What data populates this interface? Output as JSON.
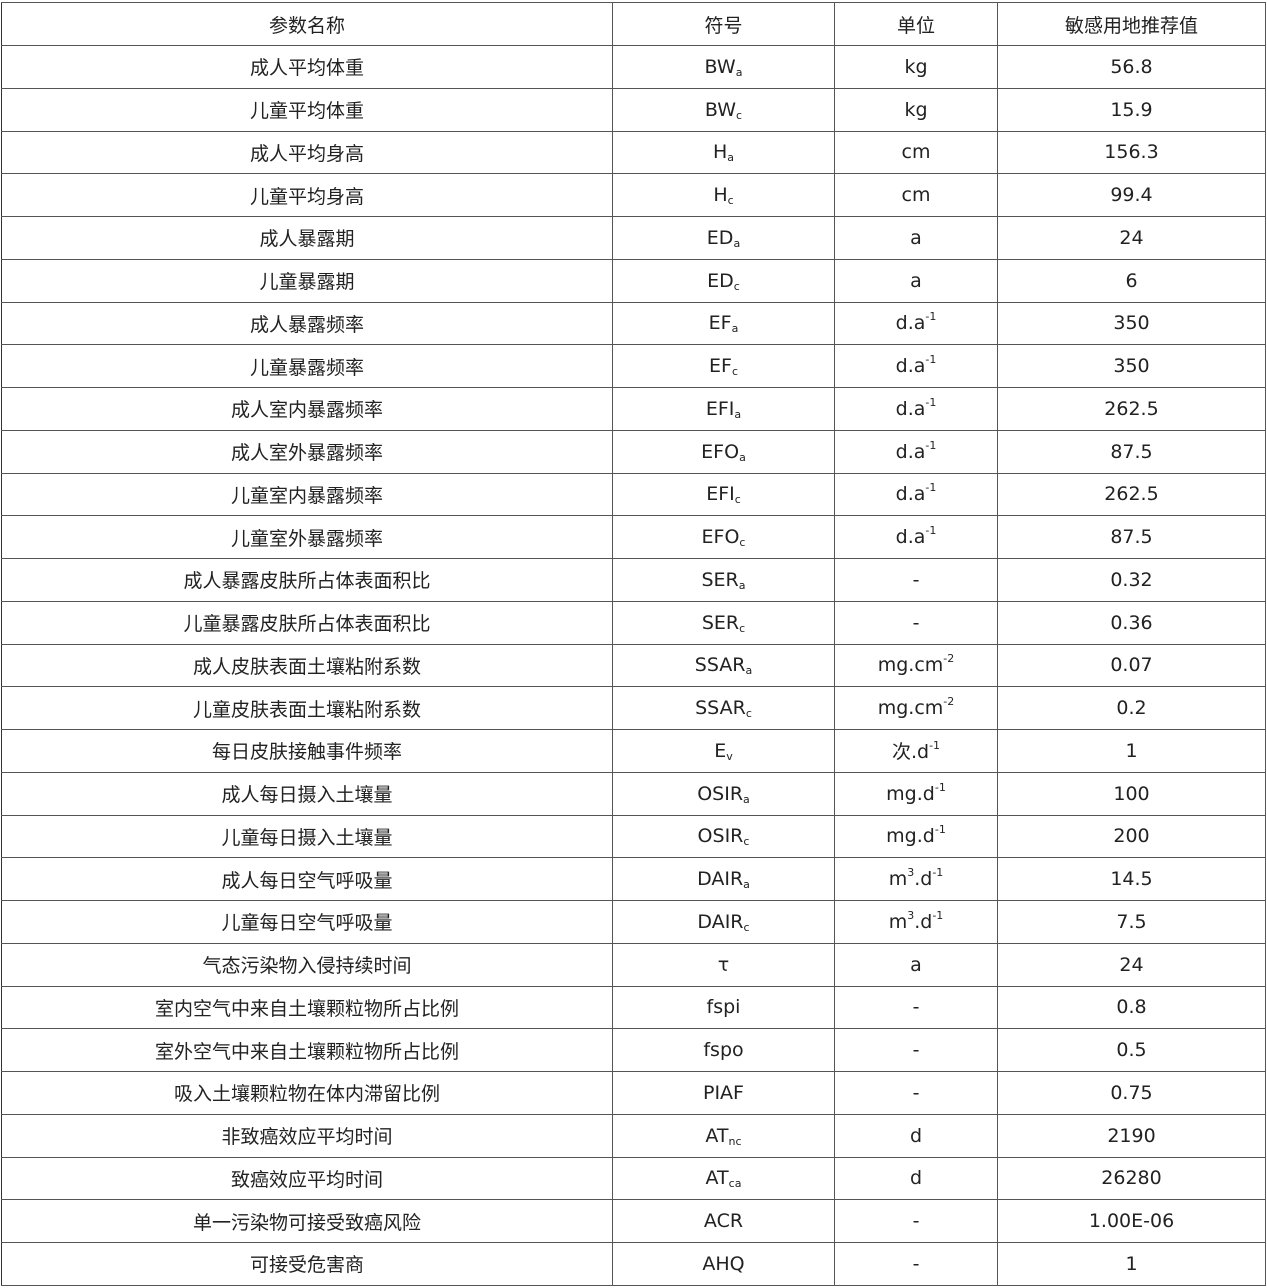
{
  "table": {
    "headers": [
      "参数名称",
      "符号",
      "单位",
      "敏感用地推荐值"
    ],
    "rows": [
      {
        "name": "成人平均体重",
        "symbol": [
          [
            "BW",
            ""
          ],
          [
            "a",
            "sub"
          ]
        ],
        "unit": [
          [
            "kg",
            ""
          ]
        ],
        "value": "56.8"
      },
      {
        "name": "儿童平均体重",
        "symbol": [
          [
            "BW",
            ""
          ],
          [
            "c",
            "sub"
          ]
        ],
        "unit": [
          [
            "kg",
            ""
          ]
        ],
        "value": "15.9"
      },
      {
        "name": "成人平均身高",
        "symbol": [
          [
            "H",
            ""
          ],
          [
            "a",
            "sub"
          ]
        ],
        "unit": [
          [
            "cm",
            ""
          ]
        ],
        "value": "156.3"
      },
      {
        "name": "儿童平均身高",
        "symbol": [
          [
            "H",
            ""
          ],
          [
            "c",
            "sub"
          ]
        ],
        "unit": [
          [
            "cm",
            ""
          ]
        ],
        "value": "99.4"
      },
      {
        "name": "成人暴露期",
        "symbol": [
          [
            "ED",
            ""
          ],
          [
            "a",
            "sub"
          ]
        ],
        "unit": [
          [
            "a",
            ""
          ]
        ],
        "value": "24"
      },
      {
        "name": "儿童暴露期",
        "symbol": [
          [
            "ED",
            ""
          ],
          [
            "c",
            "sub"
          ]
        ],
        "unit": [
          [
            "a",
            ""
          ]
        ],
        "value": "6"
      },
      {
        "name": "成人暴露频率",
        "symbol": [
          [
            "EF",
            ""
          ],
          [
            "a",
            "sub"
          ]
        ],
        "unit": [
          [
            "d.a",
            ""
          ],
          [
            "-1",
            "sup"
          ]
        ],
        "value": "350"
      },
      {
        "name": "儿童暴露频率",
        "symbol": [
          [
            "EF",
            ""
          ],
          [
            "c",
            "sub"
          ]
        ],
        "unit": [
          [
            "d.a",
            ""
          ],
          [
            "-1",
            "sup"
          ]
        ],
        "value": "350"
      },
      {
        "name": "成人室内暴露频率",
        "symbol": [
          [
            "EFI",
            ""
          ],
          [
            "a",
            "sub"
          ]
        ],
        "unit": [
          [
            "d.a",
            ""
          ],
          [
            "-1",
            "sup"
          ]
        ],
        "value": "262.5"
      },
      {
        "name": "成人室外暴露频率",
        "symbol": [
          [
            "EFO",
            ""
          ],
          [
            "a",
            "sub"
          ]
        ],
        "unit": [
          [
            "d.a",
            ""
          ],
          [
            "-1",
            "sup"
          ]
        ],
        "value": "87.5"
      },
      {
        "name": "儿童室内暴露频率",
        "symbol": [
          [
            "EFI",
            ""
          ],
          [
            "c",
            "sub"
          ]
        ],
        "unit": [
          [
            "d.a",
            ""
          ],
          [
            "-1",
            "sup"
          ]
        ],
        "value": "262.5"
      },
      {
        "name": "儿童室外暴露频率",
        "symbol": [
          [
            "EFO",
            ""
          ],
          [
            "c",
            "sub"
          ]
        ],
        "unit": [
          [
            "d.a",
            ""
          ],
          [
            "-1",
            "sup"
          ]
        ],
        "value": "87.5"
      },
      {
        "name": "成人暴露皮肤所占体表面积比",
        "symbol": [
          [
            "SER",
            ""
          ],
          [
            "a",
            "sub"
          ]
        ],
        "unit": [
          [
            "-",
            ""
          ]
        ],
        "value": "0.32"
      },
      {
        "name": "儿童暴露皮肤所占体表面积比",
        "symbol": [
          [
            "SER",
            ""
          ],
          [
            "c",
            "sub"
          ]
        ],
        "unit": [
          [
            "-",
            ""
          ]
        ],
        "value": "0.36"
      },
      {
        "name": "成人皮肤表面土壤粘附系数",
        "symbol": [
          [
            "SSAR",
            ""
          ],
          [
            "a",
            "sub"
          ]
        ],
        "unit": [
          [
            "mg.cm",
            ""
          ],
          [
            "-2",
            "sup"
          ]
        ],
        "value": "0.07"
      },
      {
        "name": "儿童皮肤表面土壤粘附系数",
        "symbol": [
          [
            "SSAR",
            ""
          ],
          [
            "c",
            "sub"
          ]
        ],
        "unit": [
          [
            "mg.cm",
            ""
          ],
          [
            "-2",
            "sup"
          ]
        ],
        "value": "0.2"
      },
      {
        "name": "每日皮肤接触事件频率",
        "symbol": [
          [
            "E",
            ""
          ],
          [
            "v",
            "sub"
          ]
        ],
        "unit": [
          [
            "次.d",
            ""
          ],
          [
            "-1",
            "sup"
          ]
        ],
        "value": "1"
      },
      {
        "name": "成人每日摄入土壤量",
        "symbol": [
          [
            "OSIR",
            ""
          ],
          [
            "a",
            "sub"
          ]
        ],
        "unit": [
          [
            "mg.d",
            ""
          ],
          [
            "-1",
            "sup"
          ]
        ],
        "value": "100"
      },
      {
        "name": "儿童每日摄入土壤量",
        "symbol": [
          [
            "OSIR",
            ""
          ],
          [
            "c",
            "sub"
          ]
        ],
        "unit": [
          [
            "mg.d",
            ""
          ],
          [
            "-1",
            "sup"
          ]
        ],
        "value": "200"
      },
      {
        "name": "成人每日空气呼吸量",
        "symbol": [
          [
            "DAIR",
            ""
          ],
          [
            "a",
            "sub"
          ]
        ],
        "unit": [
          [
            "m",
            ""
          ],
          [
            "3",
            "sup"
          ],
          [
            ".d",
            ""
          ],
          [
            "-1",
            "sup"
          ]
        ],
        "value": "14.5"
      },
      {
        "name": "儿童每日空气呼吸量",
        "symbol": [
          [
            "DAIR",
            ""
          ],
          [
            "c",
            "sub"
          ]
        ],
        "unit": [
          [
            "m",
            ""
          ],
          [
            "3",
            "sup"
          ],
          [
            ".d",
            ""
          ],
          [
            "-1",
            "sup"
          ]
        ],
        "value": "7.5"
      },
      {
        "name": "气态污染物入侵持续时间",
        "symbol": [
          [
            "τ",
            ""
          ]
        ],
        "unit": [
          [
            "a",
            ""
          ]
        ],
        "value": "24"
      },
      {
        "name": "室内空气中来自土壤颗粒物所占比例",
        "symbol": [
          [
            "fspi",
            ""
          ]
        ],
        "unit": [
          [
            "-",
            ""
          ]
        ],
        "value": "0.8"
      },
      {
        "name": "室外空气中来自土壤颗粒物所占比例",
        "symbol": [
          [
            "fspo",
            ""
          ]
        ],
        "unit": [
          [
            "-",
            ""
          ]
        ],
        "value": "0.5"
      },
      {
        "name": "吸入土壤颗粒物在体内滞留比例",
        "symbol": [
          [
            "PIAF",
            ""
          ]
        ],
        "unit": [
          [
            "-",
            ""
          ]
        ],
        "value": "0.75"
      },
      {
        "name": "非致癌效应平均时间",
        "symbol": [
          [
            "AT",
            ""
          ],
          [
            "nc",
            "sub"
          ]
        ],
        "unit": [
          [
            "d",
            ""
          ]
        ],
        "value": "2190"
      },
      {
        "name": "致癌效应平均时间",
        "symbol": [
          [
            "AT",
            ""
          ],
          [
            "ca",
            "sub"
          ]
        ],
        "unit": [
          [
            "d",
            ""
          ]
        ],
        "value": "26280"
      },
      {
        "name": "单一污染物可接受致癌风险",
        "symbol": [
          [
            "ACR",
            ""
          ]
        ],
        "unit": [
          [
            "-",
            ""
          ]
        ],
        "value": "1.00E-06"
      },
      {
        "name": "可接受危害商",
        "symbol": [
          [
            "AHQ",
            ""
          ]
        ],
        "unit": [
          [
            "-",
            ""
          ]
        ],
        "value": "1"
      }
    ]
  }
}
